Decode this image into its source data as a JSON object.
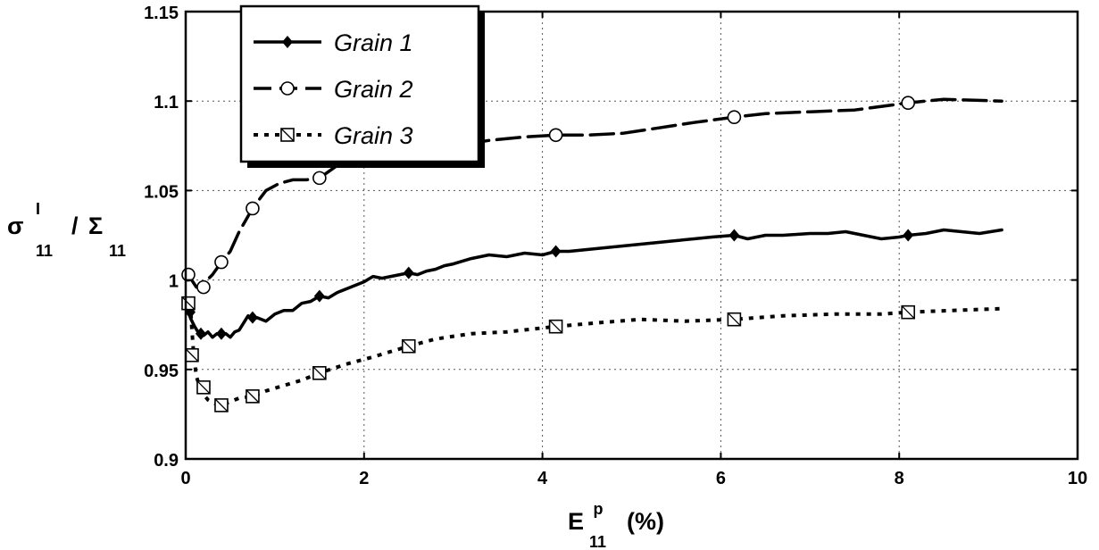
{
  "chart_data": {
    "type": "line",
    "xlabel": {
      "main": "E",
      "sup": "p",
      "sub": "11",
      "suffix": "(%)"
    },
    "ylabel": {
      "sigma": "σ",
      "sup": "I",
      "sub1": "11",
      "slash": "/",
      "Sigma": "Σ",
      "sub2": "11"
    },
    "xlim": [
      0,
      10
    ],
    "ylim": [
      0.9,
      1.15
    ],
    "xticks": [
      "0",
      "2",
      "4",
      "6",
      "8",
      "10"
    ],
    "yticks": [
      "0.9",
      "0.95",
      "1",
      "1.05",
      "1.1",
      "1.15"
    ],
    "grid": true,
    "legend_position": "top-left",
    "series": [
      {
        "name": "Grain 1",
        "line_style": "solid",
        "marker": "diamond",
        "x": [
          0,
          0.03,
          0.06,
          0.1,
          0.15,
          0.2,
          0.25,
          0.3,
          0.35,
          0.4,
          0.45,
          0.5,
          0.55,
          0.6,
          0.65,
          0.7,
          0.75,
          0.8,
          0.9,
          1.0,
          1.1,
          1.2,
          1.3,
          1.4,
          1.5,
          1.6,
          1.7,
          1.8,
          1.9,
          2.0,
          2.1,
          2.2,
          2.3,
          2.4,
          2.5,
          2.6,
          2.7,
          2.8,
          2.9,
          3.0,
          3.2,
          3.4,
          3.6,
          3.8,
          4.0,
          4.15,
          4.3,
          4.5,
          4.7,
          4.9,
          5.1,
          5.3,
          5.5,
          5.7,
          5.9,
          6.15,
          6.3,
          6.5,
          6.7,
          7.0,
          7.2,
          7.4,
          7.6,
          7.8,
          8.0,
          8.1,
          8.3,
          8.5,
          8.7,
          8.9,
          9.15
        ],
        "y": [
          0.988,
          0.982,
          0.978,
          0.974,
          0.97,
          0.969,
          0.971,
          0.968,
          0.97,
          0.969,
          0.97,
          0.968,
          0.971,
          0.972,
          0.976,
          0.98,
          0.978,
          0.979,
          0.977,
          0.981,
          0.983,
          0.983,
          0.987,
          0.988,
          0.991,
          0.99,
          0.993,
          0.995,
          0.997,
          0.999,
          1.002,
          1.001,
          1.002,
          1.003,
          1.004,
          1.003,
          1.005,
          1.006,
          1.008,
          1.009,
          1.012,
          1.014,
          1.013,
          1.015,
          1.014,
          1.016,
          1.016,
          1.017,
          1.018,
          1.019,
          1.02,
          1.021,
          1.022,
          1.023,
          1.024,
          1.025,
          1.023,
          1.025,
          1.025,
          1.026,
          1.026,
          1.027,
          1.025,
          1.023,
          1.024,
          1.025,
          1.026,
          1.028,
          1.027,
          1.026,
          1.028
        ],
        "marker_x": [
          0.05,
          0.17,
          0.4,
          0.75,
          1.5,
          2.5,
          4.15,
          6.15,
          8.1
        ],
        "marker_y": [
          0.982,
          0.97,
          0.97,
          0.979,
          0.991,
          1.004,
          1.016,
          1.025,
          1.025
        ]
      },
      {
        "name": "Grain 2",
        "line_style": "dashed",
        "marker": "circle",
        "x": [
          0.03,
          0.08,
          0.12,
          0.17,
          0.22,
          0.3,
          0.4,
          0.5,
          0.6,
          0.75,
          0.9,
          1.05,
          1.2,
          1.35,
          1.5,
          1.7,
          1.9,
          2.1,
          2.4,
          2.7,
          3.0,
          3.4,
          3.8,
          4.15,
          4.5,
          4.9,
          5.3,
          5.7,
          6.15,
          6.5,
          7.0,
          7.5,
          8.1,
          8.5,
          9.15
        ],
        "y": [
          1.003,
          0.999,
          0.996,
          0.997,
          0.999,
          1.003,
          1.01,
          1.016,
          1.027,
          1.04,
          1.05,
          1.054,
          1.056,
          1.056,
          1.057,
          1.064,
          1.066,
          1.068,
          1.07,
          1.072,
          1.075,
          1.078,
          1.08,
          1.081,
          1.081,
          1.082,
          1.085,
          1.088,
          1.091,
          1.093,
          1.094,
          1.095,
          1.099,
          1.101,
          1.1
        ],
        "marker_x": [
          0.03,
          0.2,
          0.4,
          0.75,
          1.5,
          4.15,
          6.15,
          8.1
        ],
        "marker_y": [
          1.003,
          0.996,
          1.01,
          1.04,
          1.057,
          1.081,
          1.091,
          1.099
        ]
      },
      {
        "name": "Grain 3",
        "line_style": "dotted",
        "marker": "square",
        "x": [
          0.05,
          0.07,
          0.09,
          0.12,
          0.16,
          0.2,
          0.25,
          0.32,
          0.4,
          0.5,
          0.6,
          0.75,
          0.9,
          1.1,
          1.3,
          1.5,
          1.8,
          2.1,
          2.5,
          2.8,
          3.2,
          3.6,
          4.15,
          4.6,
          5.1,
          5.6,
          6.15,
          6.7,
          7.3,
          7.8,
          8.1,
          8.6,
          9.15
        ],
        "y": [
          0.987,
          0.972,
          0.958,
          0.946,
          0.94,
          0.936,
          0.933,
          0.931,
          0.93,
          0.932,
          0.934,
          0.935,
          0.938,
          0.941,
          0.944,
          0.948,
          0.953,
          0.957,
          0.963,
          0.967,
          0.97,
          0.971,
          0.974,
          0.976,
          0.978,
          0.977,
          0.978,
          0.98,
          0.981,
          0.981,
          0.982,
          0.983,
          0.984
        ],
        "marker_x": [
          0.03,
          0.07,
          0.2,
          0.4,
          0.75,
          1.5,
          2.5,
          4.15,
          6.15,
          8.1
        ],
        "marker_y": [
          0.987,
          0.958,
          0.94,
          0.93,
          0.935,
          0.948,
          0.963,
          0.974,
          0.978,
          0.982
        ]
      }
    ]
  }
}
